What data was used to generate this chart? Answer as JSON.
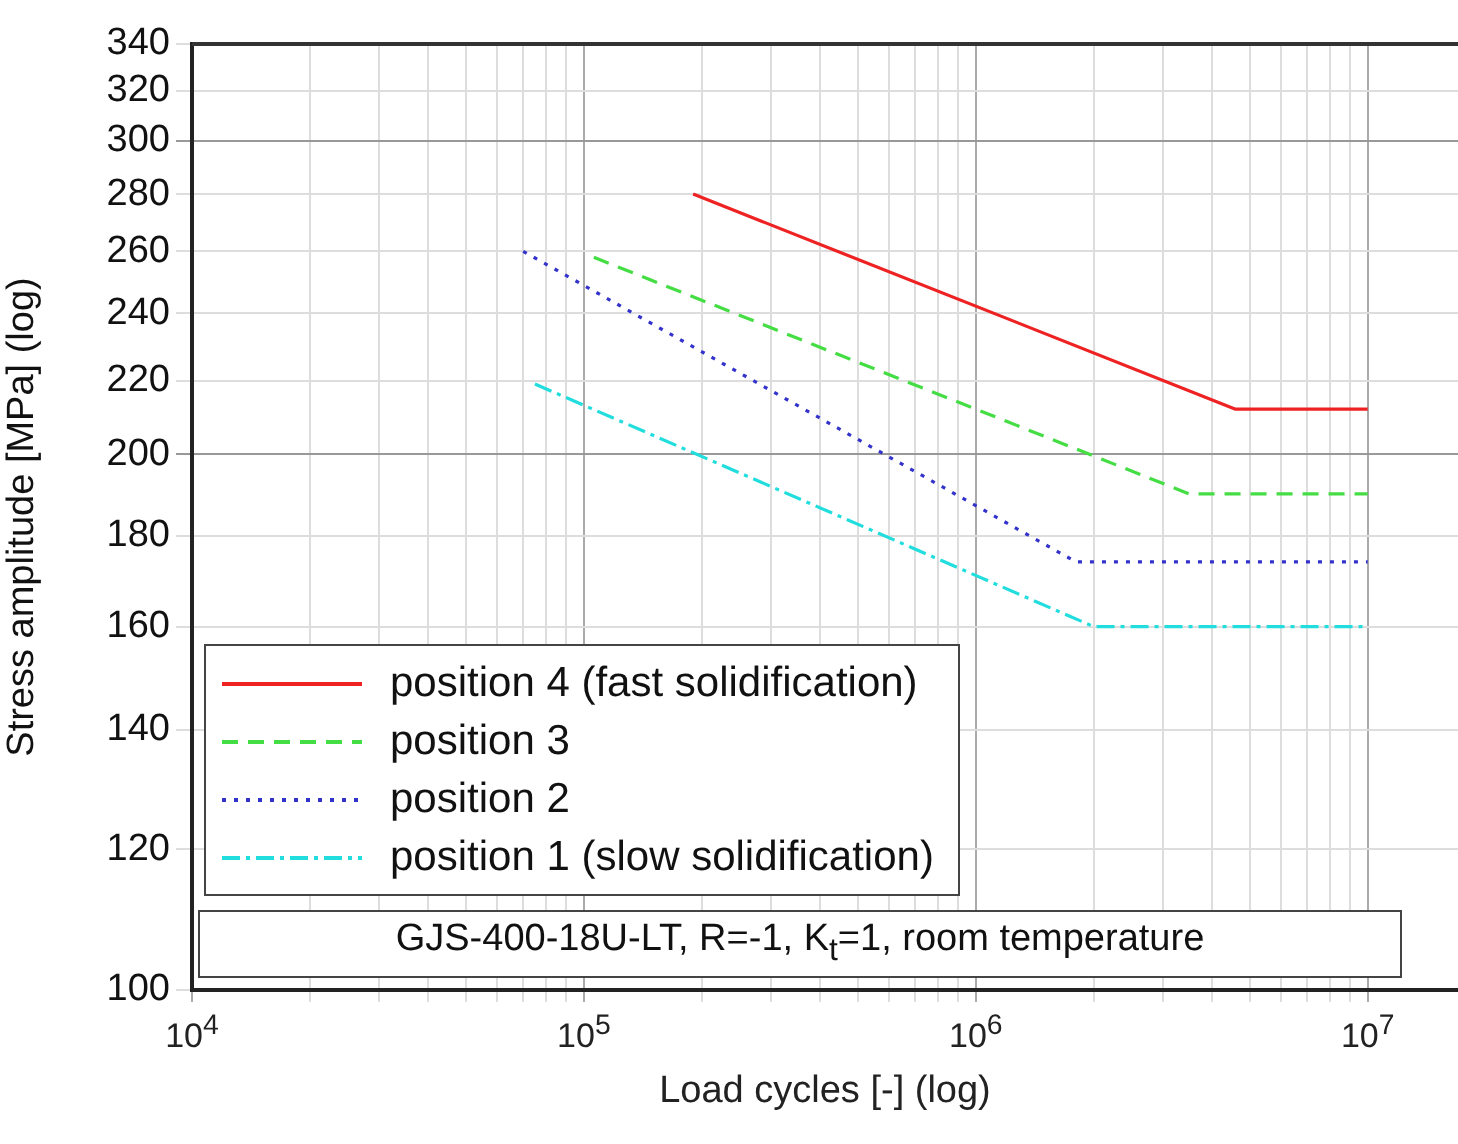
{
  "chart_data": {
    "type": "line",
    "xlabel": "Load cycles [-] (log)",
    "ylabel": "Stress amplitude [MPa] (log)",
    "log": "xy",
    "grid": true,
    "legend": "bottom left",
    "marker": "none",
    "xlim": [
      10000,
      17000000
    ],
    "xticks": [
      {
        "value": 10000,
        "label": "10$^{4}$"
      },
      {
        "value": 20000,
        "label": null
      },
      {
        "value": 30000,
        "label": null
      },
      {
        "value": 40000,
        "label": null
      },
      {
        "value": 50000,
        "label": null
      },
      {
        "value": 60000,
        "label": null
      },
      {
        "value": 70000,
        "label": null
      },
      {
        "value": 80000,
        "label": null
      },
      {
        "value": 90000,
        "label": null
      },
      {
        "value": 100000,
        "label": "10$^{5}$"
      },
      {
        "value": 200000,
        "label": null
      },
      {
        "value": 300000,
        "label": null
      },
      {
        "value": 400000,
        "label": null
      },
      {
        "value": 500000,
        "label": null
      },
      {
        "value": 600000,
        "label": null
      },
      {
        "value": 700000,
        "label": null
      },
      {
        "value": 800000,
        "label": null
      },
      {
        "value": 900000,
        "label": null
      },
      {
        "value": 1000000,
        "label": "10$^{6}$"
      },
      {
        "value": 2000000,
        "label": null
      },
      {
        "value": 3000000,
        "label": null
      },
      {
        "value": 4000000,
        "label": null
      },
      {
        "value": 5000000,
        "label": null
      },
      {
        "value": 6000000,
        "label": null
      },
      {
        "value": 7000000,
        "label": null
      },
      {
        "value": 8000000,
        "label": null
      },
      {
        "value": 9000000,
        "label": null
      },
      {
        "value": 10000000,
        "label": "10$^{7}$"
      }
    ],
    "ylim": [
      100,
      340
    ],
    "yticks": [
      100,
      120,
      140,
      160,
      180,
      200,
      220,
      240,
      260,
      280,
      300,
      320,
      340
    ],
    "series": [
      {
        "name": "position 4 (fast solidification)",
        "color": "#ee2222",
        "line_style": "solid",
        "x": [
          190000,
          4600000,
          10000000
        ],
        "values": [
          280,
          212,
          212
        ]
      },
      {
        "name": "position 3",
        "color": "#44dd44",
        "line_style": "dashed",
        "x": [
          106000,
          3500000,
          10000000
        ],
        "values": [
          258,
          190,
          190
        ]
      },
      {
        "name": "position 2",
        "color": "#3333cc",
        "line_style": "dotted",
        "x": [
          70000,
          1800000,
          10000000
        ],
        "values": [
          260,
          174,
          174
        ]
      },
      {
        "name": "position 1 (slow solidification)",
        "color": "#22dddd",
        "line_style": "dashdot",
        "x": [
          75000,
          2000000,
          10000000
        ],
        "values": [
          219,
          160,
          160
        ]
      }
    ],
    "annotations": [
      "GJS-400-18U-LT, R=-1, K$_{t}$=1, room temperature"
    ]
  }
}
